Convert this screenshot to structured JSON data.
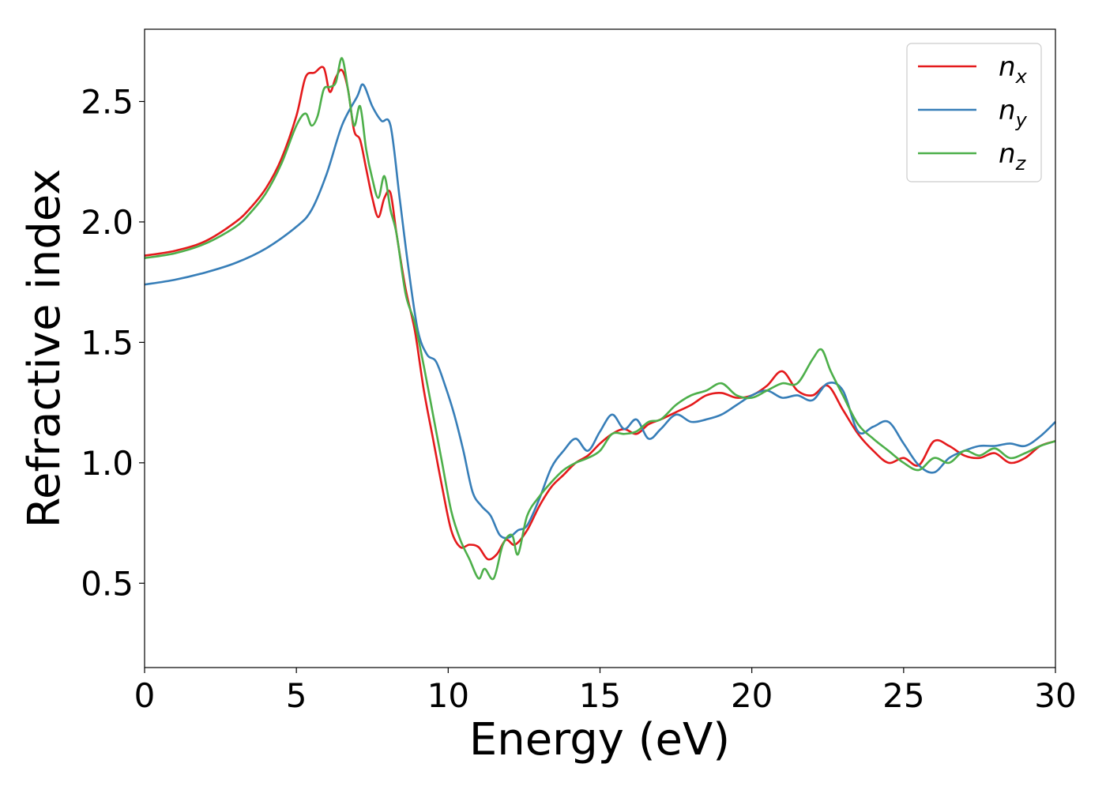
{
  "chart_data": {
    "type": "line",
    "title": "",
    "xlabel": "Energy (eV)",
    "ylabel": "Refractive index",
    "xlim": [
      0,
      30
    ],
    "ylim": [
      0.15,
      2.8
    ],
    "xticks": [
      0,
      5,
      10,
      15,
      20,
      25,
      30
    ],
    "xtick_labels": [
      "0",
      "5",
      "10",
      "15",
      "20",
      "25",
      "30"
    ],
    "yticks": [
      0.5,
      1.0,
      1.5,
      2.0,
      2.5
    ],
    "ytick_labels": [
      "0.5",
      "1.0",
      "1.5",
      "2.0",
      "2.5"
    ],
    "grid": false,
    "legend_position": "top-right",
    "series": [
      {
        "name": "n",
        "subscript": "x",
        "color": "#e41a1c",
        "x": [
          0,
          1,
          2,
          3,
          3.5,
          4,
          4.5,
          5,
          5.3,
          5.6,
          5.9,
          6.1,
          6.3,
          6.5,
          6.7,
          6.9,
          7.1,
          7.3,
          7.5,
          7.7,
          7.9,
          8.1,
          8.3,
          8.6,
          8.9,
          9.2,
          9.5,
          9.8,
          10.1,
          10.4,
          10.7,
          11.0,
          11.3,
          11.6,
          11.9,
          12.2,
          12.6,
          13.0,
          13.4,
          13.8,
          14.2,
          14.6,
          15.0,
          15.4,
          15.8,
          16.2,
          16.6,
          17.0,
          17.5,
          18.0,
          18.5,
          19.0,
          19.5,
          20.0,
          20.5,
          21.0,
          21.5,
          22.0,
          22.5,
          23.0,
          23.5,
          24.0,
          24.5,
          25.0,
          25.5,
          26.0,
          26.5,
          27.0,
          27.5,
          28.0,
          28.5,
          29.0,
          29.5,
          30.0
        ],
        "y": [
          1.86,
          1.88,
          1.92,
          2.0,
          2.06,
          2.14,
          2.26,
          2.44,
          2.6,
          2.62,
          2.64,
          2.54,
          2.6,
          2.63,
          2.55,
          2.38,
          2.34,
          2.22,
          2.1,
          2.02,
          2.1,
          2.12,
          1.95,
          1.72,
          1.55,
          1.3,
          1.1,
          0.9,
          0.72,
          0.65,
          0.66,
          0.65,
          0.6,
          0.62,
          0.68,
          0.66,
          0.72,
          0.82,
          0.9,
          0.95,
          1.0,
          1.03,
          1.08,
          1.12,
          1.14,
          1.12,
          1.16,
          1.18,
          1.21,
          1.24,
          1.28,
          1.29,
          1.27,
          1.28,
          1.32,
          1.38,
          1.3,
          1.28,
          1.32,
          1.22,
          1.12,
          1.05,
          1.0,
          1.02,
          0.99,
          1.09,
          1.07,
          1.03,
          1.02,
          1.04,
          1.0,
          1.02,
          1.07,
          1.09
        ]
      },
      {
        "name": "n",
        "subscript": "y",
        "color": "#377eb8",
        "x": [
          0,
          1,
          2,
          3,
          4,
          5,
          5.5,
          6,
          6.5,
          7.0,
          7.2,
          7.5,
          7.8,
          8.1,
          8.4,
          8.7,
          9.0,
          9.3,
          9.6,
          9.9,
          10.2,
          10.5,
          10.8,
          11.1,
          11.4,
          11.7,
          12.0,
          12.3,
          12.6,
          13.0,
          13.4,
          13.8,
          14.2,
          14.6,
          15.0,
          15.4,
          15.8,
          16.2,
          16.6,
          17.0,
          17.5,
          18.0,
          18.5,
          19.0,
          19.5,
          20.0,
          20.5,
          21.0,
          21.5,
          22.0,
          22.5,
          23.0,
          23.5,
          24.0,
          24.5,
          25.0,
          25.5,
          26.0,
          26.5,
          27.0,
          27.5,
          28.0,
          28.5,
          29.0,
          29.5,
          30.0
        ],
        "y": [
          1.74,
          1.76,
          1.79,
          1.83,
          1.89,
          1.98,
          2.05,
          2.2,
          2.4,
          2.52,
          2.57,
          2.48,
          2.42,
          2.4,
          2.1,
          1.8,
          1.55,
          1.45,
          1.42,
          1.32,
          1.2,
          1.05,
          0.88,
          0.82,
          0.78,
          0.7,
          0.69,
          0.72,
          0.74,
          0.85,
          0.98,
          1.05,
          1.1,
          1.05,
          1.13,
          1.2,
          1.14,
          1.18,
          1.1,
          1.14,
          1.2,
          1.17,
          1.18,
          1.2,
          1.24,
          1.28,
          1.3,
          1.27,
          1.28,
          1.26,
          1.33,
          1.3,
          1.13,
          1.15,
          1.17,
          1.08,
          0.99,
          0.96,
          1.02,
          1.05,
          1.07,
          1.07,
          1.08,
          1.07,
          1.11,
          1.17
        ]
      },
      {
        "name": "n",
        "subscript": "z",
        "color": "#4daf4a",
        "x": [
          0,
          1,
          2,
          3,
          3.5,
          4,
          4.5,
          5,
          5.3,
          5.5,
          5.7,
          5.9,
          6.1,
          6.3,
          6.5,
          6.7,
          6.9,
          7.1,
          7.3,
          7.5,
          7.7,
          7.9,
          8.1,
          8.3,
          8.6,
          8.9,
          9.2,
          9.5,
          9.8,
          10.1,
          10.4,
          10.7,
          11.0,
          11.2,
          11.5,
          11.8,
          12.1,
          12.3,
          12.6,
          13.0,
          13.4,
          13.8,
          14.2,
          14.6,
          15.0,
          15.4,
          15.8,
          16.2,
          16.6,
          17.0,
          17.5,
          18.0,
          18.5,
          19.0,
          19.5,
          20.0,
          20.5,
          21.0,
          21.5,
          22.0,
          22.3,
          22.6,
          23.0,
          23.5,
          24.0,
          24.5,
          25.0,
          25.5,
          26.0,
          26.5,
          27.0,
          27.5,
          28.0,
          28.5,
          29.0,
          29.5,
          30.0
        ],
        "y": [
          1.85,
          1.87,
          1.91,
          1.98,
          2.04,
          2.12,
          2.24,
          2.4,
          2.45,
          2.4,
          2.44,
          2.55,
          2.56,
          2.58,
          2.68,
          2.55,
          2.4,
          2.48,
          2.3,
          2.18,
          2.1,
          2.19,
          2.05,
          1.95,
          1.7,
          1.58,
          1.4,
          1.2,
          1.0,
          0.8,
          0.68,
          0.6,
          0.52,
          0.56,
          0.52,
          0.66,
          0.7,
          0.62,
          0.78,
          0.86,
          0.92,
          0.97,
          1.0,
          1.02,
          1.05,
          1.12,
          1.12,
          1.13,
          1.17,
          1.18,
          1.24,
          1.28,
          1.3,
          1.33,
          1.28,
          1.27,
          1.3,
          1.33,
          1.33,
          1.43,
          1.47,
          1.38,
          1.28,
          1.16,
          1.1,
          1.05,
          1.0,
          0.97,
          1.02,
          1.0,
          1.05,
          1.03,
          1.06,
          1.02,
          1.04,
          1.07,
          1.09
        ]
      }
    ]
  }
}
